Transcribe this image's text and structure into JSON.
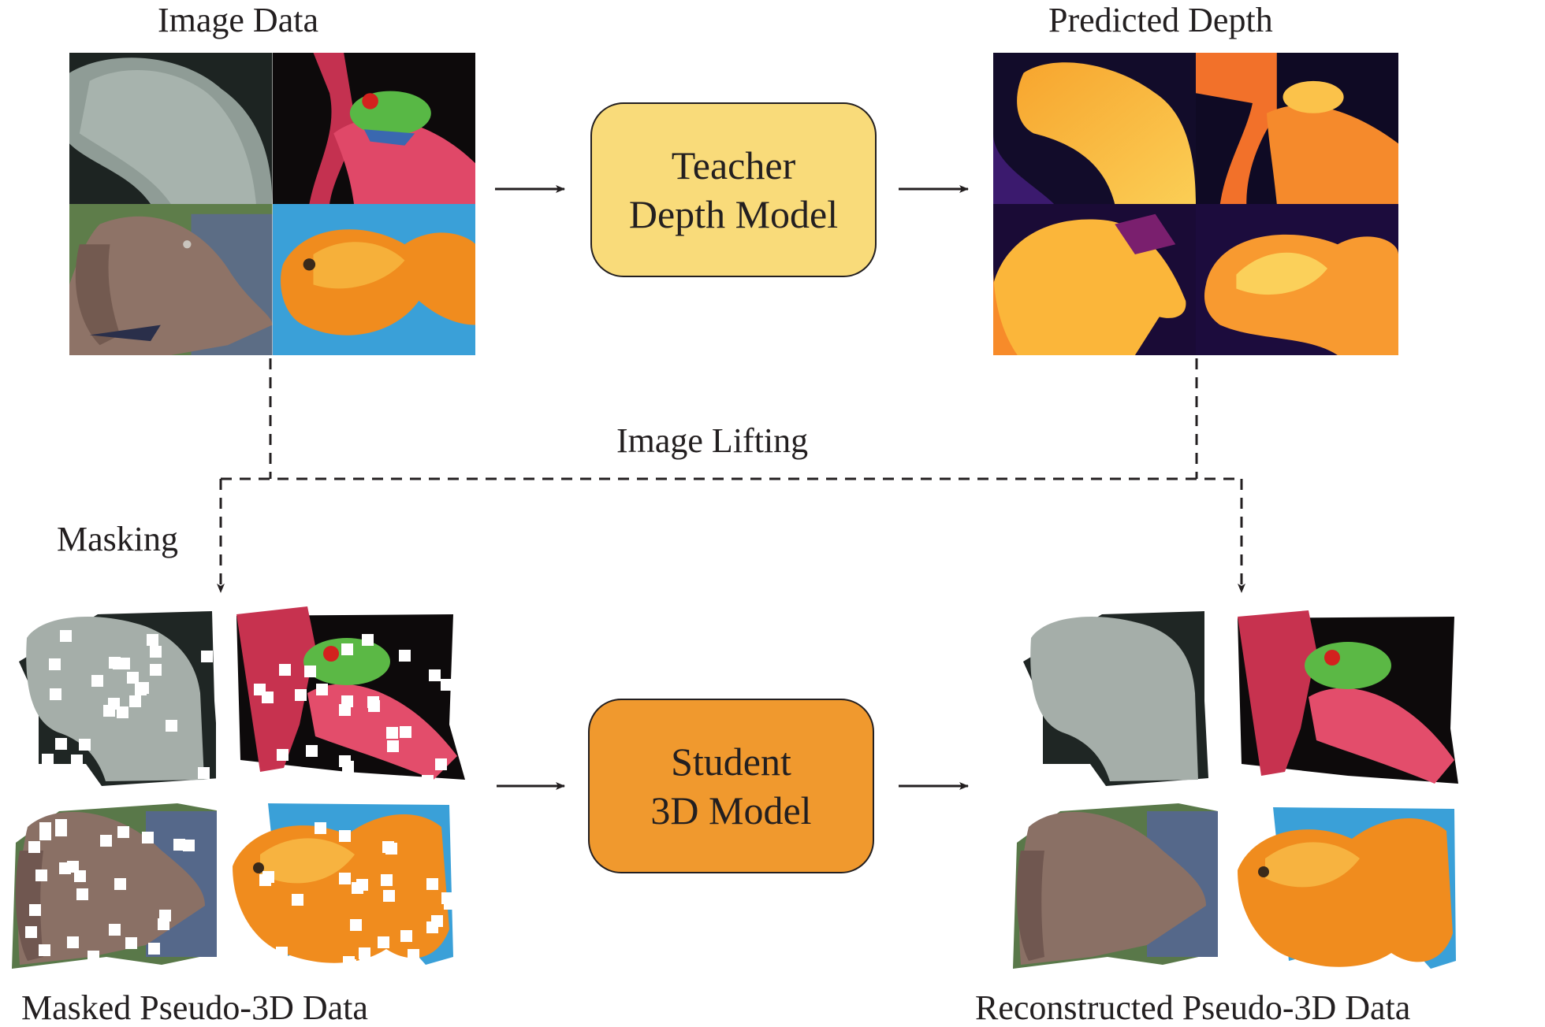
{
  "labels": {
    "image_data": "Image Data",
    "predicted_depth": "Predicted Depth",
    "image_lifting": "Image Lifting",
    "masking": "Masking",
    "masked_data": "Masked Pseudo-3D Data",
    "reconstructed_data": "Reconstructed Pseudo-3D Data"
  },
  "teacher": {
    "line1": "Teacher",
    "line2": "Depth Model"
  },
  "student": {
    "line1": "Student",
    "line2": "3D Model"
  },
  "colors": {
    "teacher_fill": "#f9db7a",
    "student_fill": "#f0992e",
    "line": "#231f20"
  },
  "thumbnails": [
    "manatee",
    "tree-frog",
    "weimaraner-dog",
    "goldfish"
  ]
}
